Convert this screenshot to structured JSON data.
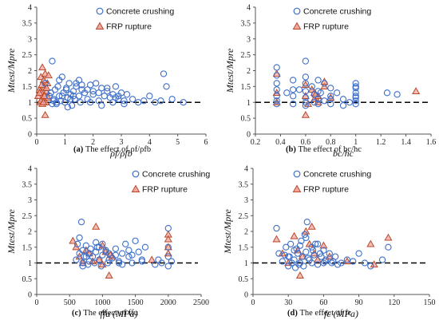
{
  "colors": {
    "concrete": "#3f6fc8",
    "frp_stroke": "#b84a2a",
    "frp_fill": "#f2a6a0",
    "axis": "#555555",
    "refline": "#000000"
  },
  "legend": {
    "concrete_label": "Concrete crushing",
    "frp_label": "FRP rupture",
    "concrete_icon": "circle-marker",
    "frp_icon": "triangle-marker"
  },
  "chart_data": [
    {
      "id": "a",
      "type": "scatter",
      "caption_tag": "(a)",
      "caption_text": "The effect of ρf/ρfb",
      "xlabel": "ρf/ρfb",
      "ylabel": "Mtest/Mpre",
      "xlim": [
        0,
        6
      ],
      "ylim": [
        0,
        4
      ],
      "xticks": [
        0,
        1,
        2,
        3,
        4,
        5,
        6
      ],
      "yticks": [
        0,
        0.5,
        1,
        1.5,
        2,
        2.5,
        3,
        3.5,
        4
      ],
      "ytick_labels": [
        "0",
        "0.5",
        "1",
        "1.5",
        "2",
        "2.5",
        "3",
        "3.5",
        "4"
      ],
      "reference_y": 1,
      "series": [
        {
          "name": "Concrete crushing",
          "marker": "circle",
          "x": [
            0.3,
            0.45,
            0.5,
            0.55,
            0.6,
            0.65,
            0.7,
            0.75,
            0.8,
            0.85,
            0.9,
            0.95,
            1.0,
            1.05,
            1.1,
            1.15,
            1.2,
            1.25,
            1.3,
            1.35,
            1.4,
            1.5,
            1.55,
            1.6,
            1.7,
            1.8,
            1.9,
            2.0,
            2.1,
            2.2,
            2.3,
            2.4,
            2.5,
            2.6,
            2.7,
            2.8,
            2.9,
            3.0,
            3.1,
            3.2,
            3.4,
            3.6,
            3.8,
            4.0,
            4.2,
            4.4,
            4.5,
            4.6,
            4.8,
            5.2,
            0.6,
            0.8,
            1.1,
            1.3,
            1.6,
            1.9,
            2.2,
            2.5,
            2.8,
            3.1,
            0.5,
            0.9,
            1.4,
            1.8,
            2.3,
            2.7,
            0.7,
            1.2,
            2.0,
            2.9,
            0.55,
            1.5,
            1.05
          ],
          "y": [
            1.6,
            1.2,
            1.3,
            2.3,
            1.1,
            1.4,
            0.95,
            1.5,
            1.2,
            1.05,
            1.8,
            1.3,
            1.0,
            1.45,
            1.15,
            1.6,
            1.25,
            0.9,
            1.35,
            1.1,
            1.5,
            1.2,
            1.0,
            1.4,
            1.3,
            1.1,
            1.55,
            1.25,
            1.6,
            1.05,
            1.45,
            1.2,
            1.35,
            1.15,
            1.0,
            1.5,
            1.1,
            1.3,
            0.95,
            1.25,
            1.1,
            1.0,
            1.05,
            1.2,
            1.0,
            1.05,
            1.9,
            1.5,
            1.1,
            1.0,
            1.05,
            1.7,
            0.85,
            1.2,
            1.55,
            1.0,
            1.3,
            1.45,
            1.15,
            1.05,
            1.3,
            1.2,
            1.6,
            1.4,
            0.9,
            1.25,
            1.0,
            1.1,
            1.35,
            1.2,
            0.95,
            1.7,
            1.4
          ]
        },
        {
          "name": "FRP rupture",
          "marker": "triangle",
          "x": [
            0.05,
            0.1,
            0.12,
            0.15,
            0.18,
            0.2,
            0.22,
            0.25,
            0.28,
            0.3,
            0.32,
            0.35,
            0.38,
            0.4,
            0.15,
            0.2,
            0.25,
            0.3,
            0.1,
            0.35,
            0.27,
            0.42,
            0.18,
            0.24
          ],
          "y": [
            1.2,
            1.4,
            1.0,
            1.8,
            1.3,
            2.1,
            1.1,
            1.5,
            1.25,
            1.9,
            1.0,
            1.35,
            1.6,
            1.15,
            1.05,
            0.95,
            1.7,
            0.6,
            1.3,
            1.45,
            1.2,
            1.85,
            1.55,
            1.0
          ]
        }
      ]
    },
    {
      "id": "b",
      "type": "scatter",
      "caption_tag": "(b)",
      "caption_text": "The effect of bc/hc",
      "xlabel": "bc/hc",
      "ylabel": "Mtest/Mpre",
      "xlim": [
        0.2,
        1.6
      ],
      "ylim": [
        0,
        4
      ],
      "xticks": [
        0.2,
        0.4,
        0.6,
        0.8,
        1.0,
        1.2,
        1.4,
        1.6
      ],
      "xtick_labels": [
        "0.2",
        "0.4",
        "0.6",
        "0.8",
        "1",
        "1.2",
        "1.4",
        "1.6"
      ],
      "yticks": [
        0,
        0.5,
        1,
        1.5,
        2,
        2.5,
        3,
        3.5,
        4
      ],
      "ytick_labels": [
        "0",
        "0.5",
        "1",
        "1.5",
        "2",
        "2.5",
        "3",
        "3.5",
        "4"
      ],
      "reference_y": 1,
      "series": [
        {
          "name": "Concrete crushing",
          "marker": "circle",
          "x": [
            0.37,
            0.37,
            0.37,
            0.37,
            0.37,
            0.37,
            0.37,
            0.45,
            0.5,
            0.5,
            0.5,
            0.55,
            0.6,
            0.6,
            0.6,
            0.6,
            0.6,
            0.6,
            0.65,
            0.67,
            0.7,
            0.7,
            0.7,
            0.7,
            0.72,
            0.75,
            0.75,
            0.8,
            0.8,
            0.8,
            0.85,
            0.9,
            0.95,
            1.0,
            1.0,
            1.0,
            1.0,
            1.0,
            1.0,
            1.0,
            1.25,
            1.33,
            0.6,
            0.5,
            0.67,
            0.8,
            0.9,
            1.0
          ],
          "y": [
            2.1,
            1.85,
            1.6,
            1.4,
            1.2,
            1.05,
            0.95,
            1.3,
            1.7,
            1.2,
            0.95,
            1.4,
            2.3,
            1.6,
            1.35,
            1.15,
            1.0,
            0.9,
            1.5,
            1.25,
            1.7,
            1.35,
            1.1,
            0.95,
            1.3,
            1.6,
            1.05,
            1.45,
            1.2,
            0.95,
            1.3,
            1.1,
            1.0,
            1.6,
            1.45,
            1.3,
            1.15,
            1.05,
            0.95,
            1.5,
            1.3,
            1.25,
            1.8,
            1.4,
            1.0,
            1.1,
            0.9,
            1.2
          ]
        },
        {
          "name": "FRP rupture",
          "marker": "triangle",
          "x": [
            0.37,
            0.37,
            0.37,
            0.6,
            0.6,
            0.6,
            0.65,
            0.67,
            0.67,
            0.7,
            0.7,
            0.75,
            0.75,
            0.8,
            1.48,
            0.62,
            0.68
          ],
          "y": [
            1.9,
            1.3,
            1.0,
            1.55,
            1.2,
            0.6,
            1.4,
            1.1,
            1.3,
            1.0,
            1.2,
            1.5,
            1.65,
            1.15,
            1.35,
            0.95,
            1.25
          ]
        }
      ]
    },
    {
      "id": "c",
      "type": "scatter",
      "caption_tag": "(c)",
      "caption_text": "The effect of ffu",
      "xlabel": "ffu (MPa)",
      "ylabel": "Mtest/Mpre",
      "xlim": [
        0,
        2500
      ],
      "ylim": [
        0,
        4
      ],
      "xticks": [
        0,
        500,
        1000,
        1500,
        2000,
        2500
      ],
      "yticks": [
        0,
        0.5,
        1,
        1.5,
        2,
        2.5,
        3,
        3.5,
        4
      ],
      "ytick_labels": [
        "0",
        "0.5",
        "1",
        "1.5",
        "2",
        "2.5",
        "3",
        "3.5",
        "4"
      ],
      "reference_y": 1,
      "series": [
        {
          "name": "Concrete crushing",
          "marker": "circle",
          "x": [
            600,
            620,
            650,
            680,
            700,
            700,
            720,
            750,
            780,
            800,
            800,
            820,
            850,
            880,
            900,
            920,
            950,
            980,
            1000,
            1000,
            1050,
            1080,
            1100,
            1150,
            1200,
            1250,
            1300,
            1350,
            1400,
            1450,
            1500,
            1550,
            1600,
            1650,
            1800,
            1850,
            1900,
            2000,
            2000,
            2000,
            2000,
            2050,
            650,
            700,
            900,
            1100,
            1200,
            1300,
            1400,
            1600,
            750,
            950,
            1050,
            1250,
            1450
          ],
          "y": [
            1.1,
            1.6,
            1.3,
            2.3,
            1.0,
            1.4,
            1.2,
            1.55,
            0.95,
            1.3,
            1.05,
            1.45,
            1.2,
            1.0,
            1.35,
            1.5,
            1.1,
            0.9,
            1.25,
            1.6,
            1.4,
            1.0,
            1.3,
            1.15,
            1.45,
            1.05,
            1.3,
            1.6,
            1.2,
            1.0,
            1.7,
            1.35,
            1.1,
            1.5,
            0.95,
            1.1,
            1.0,
            2.1,
            1.5,
            1.2,
            0.9,
            1.05,
            1.8,
            0.9,
            1.65,
            1.1,
            1.25,
            0.95,
            1.4,
            1.05,
            1.2,
            1.5,
            1.35,
            1.0,
            1.25
          ]
        },
        {
          "name": "FRP rupture",
          "marker": "triangle",
          "x": [
            550,
            600,
            650,
            700,
            750,
            800,
            900,
            950,
            1000,
            1050,
            1100,
            1150,
            1750,
            2000,
            2000,
            2000,
            2000,
            1000,
            850,
            1120
          ],
          "y": [
            1.7,
            1.5,
            1.2,
            1.0,
            1.4,
            1.3,
            2.15,
            1.1,
            0.95,
            1.35,
            0.6,
            1.2,
            1.1,
            1.9,
            1.75,
            1.5,
            1.3,
            1.55,
            1.05,
            1.25
          ]
        }
      ]
    },
    {
      "id": "d",
      "type": "scatter",
      "caption_tag": "(d)",
      "caption_text": "The effect of fc",
      "xlabel": "fc (MPa)",
      "ylabel": "Mtest/Mpre",
      "xlim": [
        0,
        150
      ],
      "ylim": [
        0,
        4
      ],
      "xticks": [
        0,
        30,
        60,
        90,
        120,
        150
      ],
      "yticks": [
        0,
        0.5,
        1,
        1.5,
        2,
        2.5,
        3,
        3.5,
        4
      ],
      "ytick_labels": [
        "0",
        "0.5",
        "1",
        "1.5",
        "2",
        "2.5",
        "3",
        "3.5",
        "4"
      ],
      "reference_y": 1,
      "series": [
        {
          "name": "Concrete crushing",
          "marker": "circle",
          "x": [
            20,
            22,
            25,
            28,
            30,
            30,
            32,
            33,
            35,
            35,
            36,
            38,
            40,
            40,
            42,
            43,
            45,
            45,
            46,
            48,
            50,
            50,
            52,
            55,
            55,
            58,
            60,
            60,
            62,
            65,
            68,
            70,
            72,
            75,
            80,
            85,
            90,
            95,
            100,
            110,
            115,
            27,
            37,
            47,
            57,
            67,
            31,
            41,
            51,
            61,
            44,
            53,
            39
          ],
          "y": [
            2.1,
            1.3,
            1.05,
            1.5,
            1.2,
            0.9,
            1.6,
            1.0,
            1.4,
            1.1,
            0.85,
            1.3,
            1.55,
            1.0,
            1.2,
            0.9,
            1.8,
            1.35,
            2.3,
            1.1,
            1.5,
            1.0,
            1.25,
            1.6,
            0.95,
            1.2,
            1.4,
            1.0,
            1.1,
            1.3,
            1.05,
            1.2,
            0.95,
            1.0,
            1.1,
            1.05,
            1.3,
            1.0,
            0.9,
            1.1,
            1.5,
            1.25,
            1.45,
            1.15,
            1.3,
            1.0,
            1.2,
            1.7,
            1.4,
            1.05,
            1.9,
            1.6,
            0.95
          ]
        },
        {
          "name": "FRP rupture",
          "marker": "triangle",
          "x": [
            20,
            25,
            30,
            35,
            38,
            40,
            42,
            45,
            48,
            50,
            52,
            55,
            60,
            65,
            80,
            100,
            103,
            115
          ],
          "y": [
            1.75,
            1.3,
            1.0,
            1.85,
            1.4,
            0.6,
            1.2,
            2.0,
            1.6,
            2.15,
            1.3,
            1.1,
            1.55,
            1.2,
            1.05,
            1.6,
            0.95,
            1.8
          ]
        }
      ]
    }
  ]
}
